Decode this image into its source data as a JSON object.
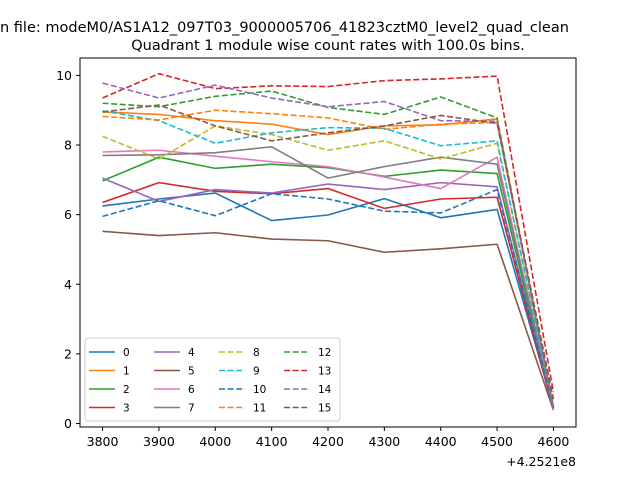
{
  "figure": {
    "suptitle": "n file: modeM0/AS1A12_097T03_9000005706_41823cztM0_level2_quad_clean",
    "offset_label": "+4.2521e8"
  },
  "chart_data": {
    "type": "line",
    "title": "Quadrant 1 module wise count rates with 100.0s bins.",
    "xlabel": "",
    "ylabel": "",
    "x": [
      3800,
      3900,
      4000,
      4100,
      4200,
      4300,
      4400,
      4500,
      4600
    ],
    "x_tick_labels": [
      "3800",
      "3900",
      "4000",
      "4100",
      "4200",
      "4300",
      "4400",
      "4500",
      "4600"
    ],
    "y_ticks": [
      0,
      2,
      4,
      6,
      8,
      10
    ],
    "xlim": [
      3760,
      4640
    ],
    "ylim": [
      -0.1,
      10.5
    ],
    "grid": false,
    "legend_position": "lower-left",
    "legend_columns": 4,
    "series": [
      {
        "name": "0",
        "color": "#1f77b4",
        "dash": "solid",
        "values": [
          6.25,
          6.45,
          6.62,
          5.83,
          5.99,
          6.46,
          5.91,
          6.15,
          0.45
        ]
      },
      {
        "name": "1",
        "color": "#ff7f0e",
        "dash": "solid",
        "values": [
          8.95,
          8.88,
          8.7,
          8.6,
          8.3,
          8.55,
          8.58,
          8.75,
          0.45
        ]
      },
      {
        "name": "2",
        "color": "#2ca02c",
        "dash": "solid",
        "values": [
          6.97,
          7.65,
          7.33,
          7.45,
          7.35,
          7.1,
          7.28,
          7.18,
          0.45
        ]
      },
      {
        "name": "3",
        "color": "#d62728",
        "dash": "solid",
        "values": [
          6.35,
          6.92,
          6.67,
          6.6,
          6.75,
          6.18,
          6.45,
          6.5,
          0.4
        ]
      },
      {
        "name": "4",
        "color": "#9467bd",
        "dash": "solid",
        "values": [
          7.05,
          6.38,
          6.72,
          6.62,
          6.88,
          6.72,
          6.92,
          6.8,
          0.45
        ]
      },
      {
        "name": "5",
        "color": "#8c564b",
        "dash": "solid",
        "values": [
          5.52,
          5.4,
          5.48,
          5.3,
          5.25,
          4.92,
          5.02,
          5.15,
          0.38
        ]
      },
      {
        "name": "6",
        "color": "#e377c2",
        "dash": "solid",
        "values": [
          7.8,
          7.85,
          7.68,
          7.52,
          7.38,
          7.08,
          6.75,
          7.65,
          0.4
        ]
      },
      {
        "name": "7",
        "color": "#7f7f7f",
        "dash": "solid",
        "values": [
          7.7,
          7.72,
          7.78,
          7.95,
          7.05,
          7.38,
          7.65,
          7.45,
          0.45
        ]
      },
      {
        "name": "8",
        "color": "#bcbd22",
        "dash": "dashed",
        "values": [
          8.25,
          7.6,
          8.55,
          8.3,
          7.85,
          8.12,
          7.6,
          8.05,
          0.5
        ]
      },
      {
        "name": "9",
        "color": "#17becf",
        "dash": "dashed",
        "values": [
          8.98,
          8.7,
          8.05,
          8.35,
          8.5,
          8.48,
          7.98,
          8.12,
          0.45
        ]
      },
      {
        "name": "10",
        "color": "#1f77b4",
        "dash": "dashed",
        "values": [
          5.95,
          6.4,
          5.97,
          6.6,
          6.45,
          6.1,
          6.05,
          6.72,
          0.45
        ]
      },
      {
        "name": "11",
        "color": "#ff7f0e",
        "dash": "dashed",
        "values": [
          8.82,
          8.72,
          9.0,
          8.9,
          8.78,
          8.45,
          8.6,
          8.65,
          0.45
        ]
      },
      {
        "name": "12",
        "color": "#2ca02c",
        "dash": "dashed",
        "values": [
          9.2,
          9.1,
          9.4,
          9.55,
          9.08,
          8.88,
          9.38,
          8.78,
          0.5
        ]
      },
      {
        "name": "13",
        "color": "#d62728",
        "dash": "dashed",
        "values": [
          9.35,
          10.05,
          9.62,
          9.7,
          9.68,
          9.85,
          9.9,
          9.98,
          0.9
        ]
      },
      {
        "name": "14",
        "color": "#9467bd",
        "dash": "dashed",
        "values": [
          9.78,
          9.35,
          9.72,
          9.35,
          9.1,
          9.25,
          8.7,
          8.68,
          0.45
        ]
      },
      {
        "name": "15",
        "color": "#8c564b",
        "dash": "dashed",
        "values": [
          8.95,
          9.15,
          8.55,
          8.12,
          8.35,
          8.55,
          8.85,
          8.62,
          0.7
        ]
      }
    ]
  }
}
